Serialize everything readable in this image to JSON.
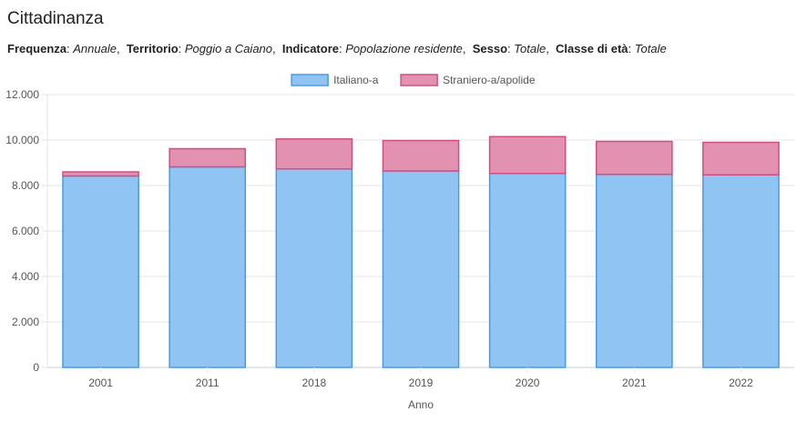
{
  "title": "Cittadinanza",
  "filters": [
    {
      "label": "Frequenza",
      "value": "Annuale"
    },
    {
      "label": "Territorio",
      "value": "Poggio a Caiano"
    },
    {
      "label": "Indicatore",
      "value": "Popolazione residente"
    },
    {
      "label": "Sesso",
      "value": "Totale"
    },
    {
      "label": "Classe di età",
      "value": "Totale"
    }
  ],
  "colors": {
    "italiano_fill": "#90c4f2",
    "italiano_border": "#4a9ae0",
    "straniero_fill": "#e291b1",
    "straniero_border": "#cf4f82",
    "grid": "#e6e6e6"
  },
  "chart_data": {
    "type": "bar",
    "stacked": true,
    "categories": [
      "2001",
      "2011",
      "2018",
      "2019",
      "2020",
      "2021",
      "2022"
    ],
    "series": [
      {
        "name": "Italiano-a",
        "values": [
          8420,
          8820,
          8730,
          8640,
          8530,
          8490,
          8470
        ]
      },
      {
        "name": "Straniero-a/apolide",
        "values": [
          180,
          800,
          1320,
          1340,
          1620,
          1450,
          1430
        ]
      }
    ],
    "xlabel": "Anno",
    "ylabel": "",
    "ylim": [
      0,
      12000
    ],
    "yticks": [
      "0",
      "2.000",
      "4.000",
      "6.000",
      "8.000",
      "10.000",
      "12.000"
    ],
    "grid": true,
    "legend": "top-center"
  }
}
